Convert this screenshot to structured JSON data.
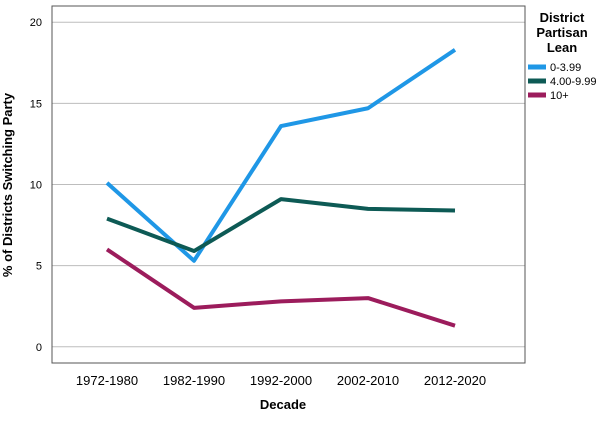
{
  "chart_data": {
    "type": "line",
    "title": "",
    "xlabel": "Decade",
    "ylabel": "% of Districts Switching Party",
    "categories": [
      "1972-1980",
      "1982-1990",
      "1992-2000",
      "2002-2010",
      "2012-2020"
    ],
    "yticks": [
      "0",
      "5",
      "10",
      "15",
      "20"
    ],
    "ylim": [
      -1,
      21
    ],
    "grid": true,
    "legend": {
      "title_lines": [
        "District",
        "Partisan",
        "Lean"
      ],
      "placement": "right"
    },
    "series": [
      {
        "name": "0-3.99",
        "color": "#1f97e6",
        "values": [
          10.1,
          5.3,
          13.6,
          14.7,
          18.3
        ]
      },
      {
        "name": "4.00-9.99",
        "color": "#0d5a55",
        "values": [
          7.9,
          5.9,
          9.1,
          8.5,
          8.4
        ]
      },
      {
        "name": "10+",
        "color": "#9c1c5c",
        "values": [
          6.0,
          2.4,
          2.8,
          3.0,
          1.3
        ]
      }
    ]
  }
}
